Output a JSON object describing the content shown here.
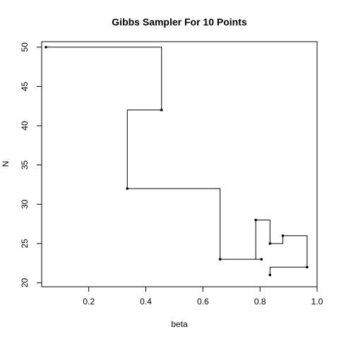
{
  "chart_data": {
    "type": "line",
    "title": "Gibbs Sampler For 10 Points",
    "xlabel": "beta",
    "ylabel": "N",
    "xlim": [
      0.035,
      1.0
    ],
    "ylim": [
      19.5,
      50.7
    ],
    "x_ticks": [
      0.2,
      0.4,
      0.6,
      0.8,
      1.0
    ],
    "x_tick_labels": [
      "0.2",
      "0.4",
      "0.6",
      "0.8",
      "1.0"
    ],
    "y_ticks": [
      20,
      25,
      30,
      35,
      40,
      45,
      50
    ],
    "y_tick_labels": [
      "20",
      "25",
      "30",
      "35",
      "40",
      "45",
      "50"
    ],
    "grid": false,
    "style": "staircase path (beta updated, then N updated)",
    "series": [
      {
        "points": [
          {
            "beta": 0.05,
            "N": 50
          },
          {
            "beta": 0.455,
            "N": 42
          },
          {
            "beta": 0.335,
            "N": 32
          },
          {
            "beta": 0.66,
            "N": 23
          },
          {
            "beta": 0.805,
            "N": 23
          },
          {
            "beta": 0.785,
            "N": 28
          },
          {
            "beta": 0.835,
            "N": 25
          },
          {
            "beta": 0.88,
            "N": 26
          },
          {
            "beta": 0.965,
            "N": 22
          },
          {
            "beta": 0.835,
            "N": 21
          }
        ]
      }
    ]
  }
}
